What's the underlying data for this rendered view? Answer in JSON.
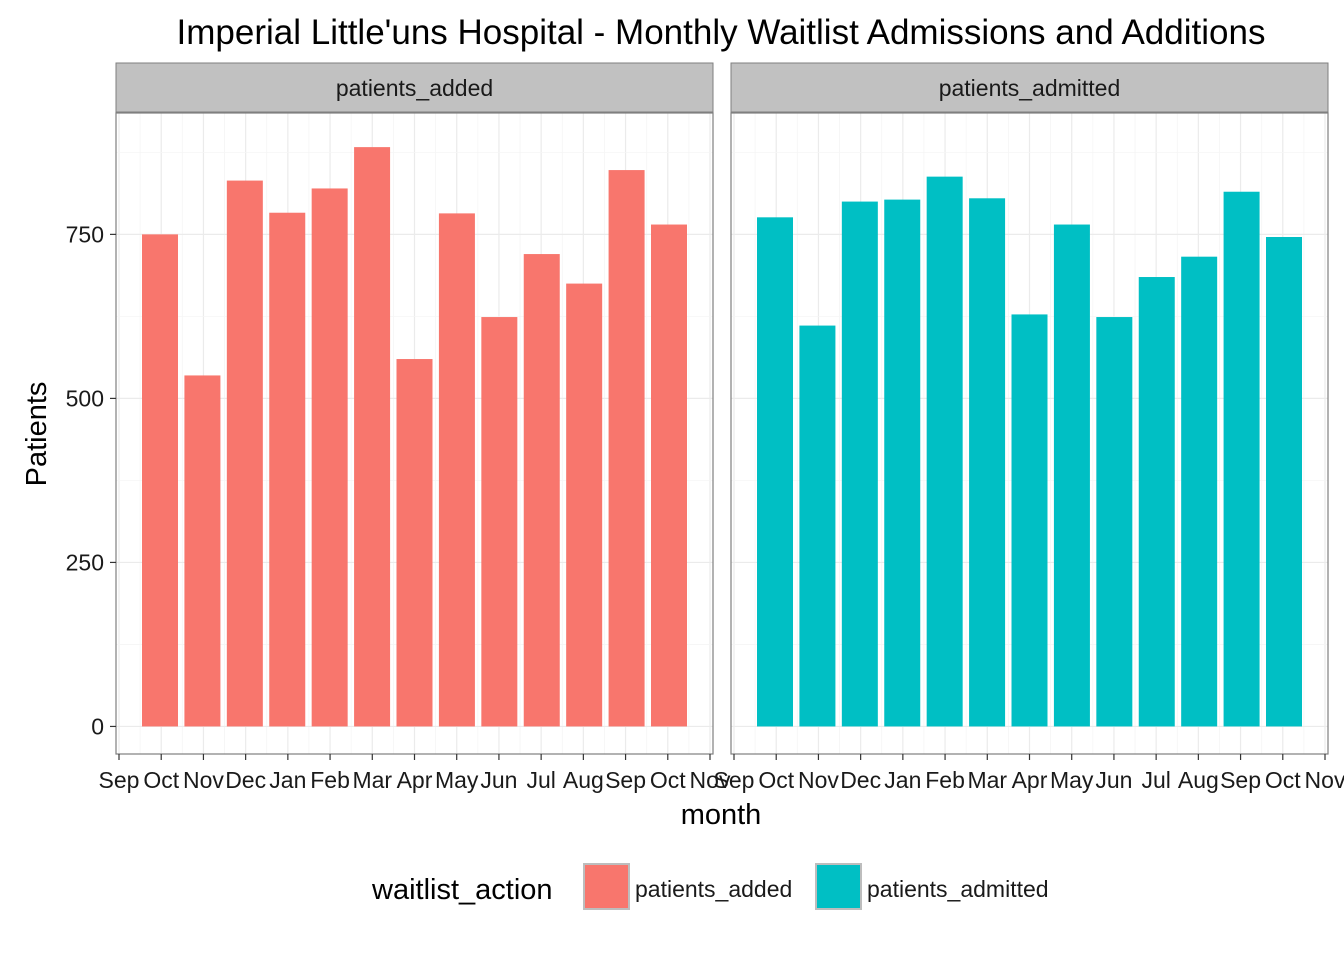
{
  "chart_data": {
    "type": "bar",
    "title": "Imperial Little'uns Hospital - Monthly Waitlist Admissions and Additions",
    "xlabel": "month",
    "ylabel": "Patients",
    "ylim": [
      -42,
      935
    ],
    "y_ticks": [
      0,
      250,
      500,
      750
    ],
    "x_tick_labels": [
      "Sep",
      "Oct",
      "Nov",
      "Dec",
      "Jan",
      "Feb",
      "Mar",
      "Apr",
      "May",
      "Jun",
      "Jul",
      "Aug",
      "Sep",
      "Oct",
      "Nov"
    ],
    "categories": [
      "Oct",
      "Nov",
      "Dec",
      "Jan",
      "Feb",
      "Mar",
      "Apr",
      "May",
      "Jun",
      "Jul",
      "Aug",
      "Sep",
      "Oct"
    ],
    "grid": true,
    "legend_position": "bottom",
    "legend_title": "waitlist_action",
    "facets": [
      {
        "label": "patients_added",
        "color": "#F8766D",
        "values": [
          750,
          535,
          832,
          783,
          820,
          883,
          560,
          782,
          624,
          720,
          675,
          848,
          765
        ]
      },
      {
        "label": "patients_admitted",
        "color": "#00BFC4",
        "values": [
          776,
          611,
          800,
          803,
          838,
          805,
          628,
          765,
          624,
          685,
          716,
          815,
          746
        ]
      }
    ]
  }
}
